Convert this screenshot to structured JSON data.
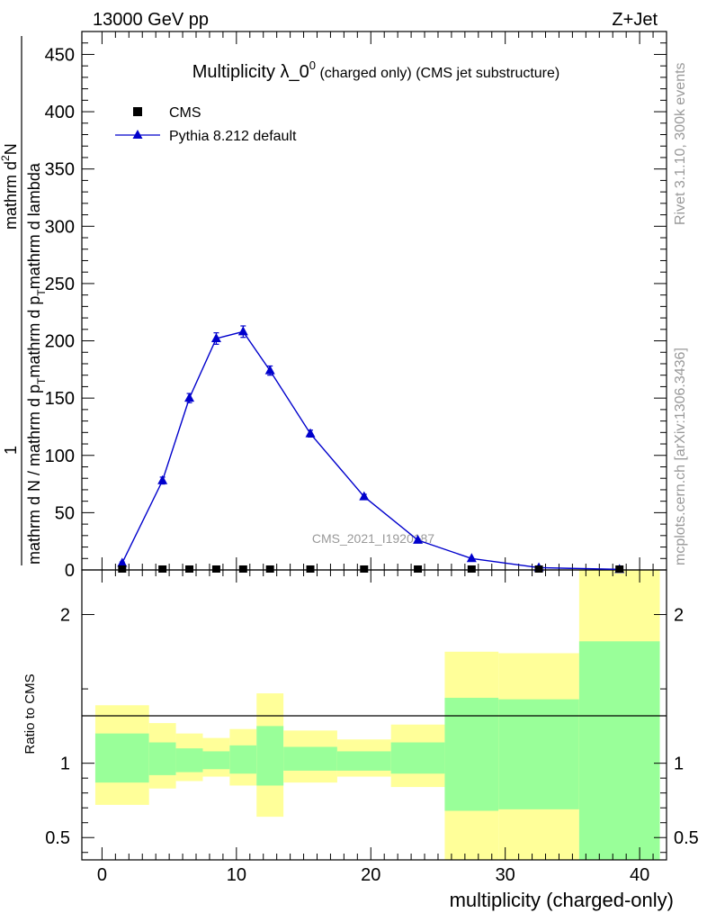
{
  "header": {
    "left": "13000 GeV pp",
    "right": "Z+Jet"
  },
  "side": {
    "rivet": "Rivet 3.1.10,  300k events",
    "mcplots": "mcplots.cern.ch [arXiv:1306.3436]"
  },
  "chart_data": {
    "type": "line",
    "title_main": "Multiplicity λ_0",
    "title_sup": "0",
    "title_tail": " (charged only) (CMS jet substructure)",
    "watermark": "CMS_2021_I1920187",
    "ylabel_top": {
      "numerator": "1",
      "denom_line1": "mathrm d N / mathrm d p",
      "denom_sub1": "T",
      "denom_line2": "mathrm d p",
      "denom_sub2": "T",
      "denom_rest": "mathrm d lambda",
      "dN": "mathrm d",
      "dN_sup": "2",
      "dN_tail": "N"
    },
    "ylabel_ratio": "Ratio to CMS",
    "xlabel": "multiplicity (charged-only)",
    "xlim": [
      -1.5,
      42
    ],
    "ylim_main": [
      0,
      470
    ],
    "ylim_ratio": [
      0.35,
      2.3
    ],
    "x_ticks": [
      "0",
      "10",
      "20",
      "30",
      "40"
    ],
    "y_ticks_main": [
      "0",
      "50",
      "100",
      "150",
      "200",
      "250",
      "300",
      "350",
      "400",
      "450"
    ],
    "y_ticks_ratio": [
      "0.5",
      "1",
      "2"
    ],
    "legend": [
      {
        "label": "CMS",
        "marker": "square",
        "color": "#000000"
      },
      {
        "label": "Pythia 8.212 default",
        "marker": "triangle",
        "color": "#0000cc"
      }
    ],
    "series": [
      {
        "name": "CMS",
        "x": [
          1.5,
          4.5,
          6.5,
          8.5,
          10.5,
          12.5,
          15.5,
          19.5,
          23.5,
          27.5,
          32.5,
          38.5
        ],
        "values": [
          0.8,
          0.8,
          0.8,
          0.8,
          0.8,
          0.8,
          0.8,
          0.8,
          0.8,
          0.8,
          0.8,
          0.8
        ]
      },
      {
        "name": "Pythia 8.212 default",
        "x": [
          1.5,
          4.5,
          6.5,
          8.5,
          10.5,
          12.5,
          15.5,
          19.5,
          23.5,
          27.5,
          32.5,
          38.5
        ],
        "values": [
          6,
          78,
          150,
          202,
          208,
          174,
          119,
          64,
          26,
          10,
          2,
          0.5
        ],
        "errors": [
          1,
          3,
          4,
          5,
          5,
          4,
          3,
          2,
          1,
          0.5,
          0.2,
          0.1
        ]
      }
    ],
    "ratio_bands": [
      {
        "x0": -0.5,
        "x1": 3.5,
        "y_lo": 0.72,
        "y_hi": 1.39,
        "g_lo": 0.87,
        "g_hi": 1.2
      },
      {
        "x0": 3.5,
        "x1": 5.5,
        "y_lo": 0.83,
        "y_hi": 1.27,
        "g_lo": 0.92,
        "g_hi": 1.14
      },
      {
        "x0": 5.5,
        "x1": 7.5,
        "y_lo": 0.88,
        "y_hi": 1.2,
        "g_lo": 0.94,
        "g_hi": 1.1
      },
      {
        "x0": 7.5,
        "x1": 9.5,
        "y_lo": 0.91,
        "y_hi": 1.17,
        "g_lo": 0.96,
        "g_hi": 1.08
      },
      {
        "x0": 9.5,
        "x1": 11.5,
        "y_lo": 0.85,
        "y_hi": 1.23,
        "g_lo": 0.93,
        "g_hi": 1.12
      },
      {
        "x0": 11.5,
        "x1": 13.5,
        "y_lo": 0.64,
        "y_hi": 1.47,
        "g_lo": 0.85,
        "g_hi": 1.25
      },
      {
        "x0": 13.5,
        "x1": 17.5,
        "y_lo": 0.87,
        "y_hi": 1.22,
        "g_lo": 0.95,
        "g_hi": 1.11
      },
      {
        "x0": 17.5,
        "x1": 21.5,
        "y_lo": 0.91,
        "y_hi": 1.16,
        "g_lo": 0.95,
        "g_hi": 1.08
      },
      {
        "x0": 21.5,
        "x1": 25.5,
        "y_lo": 0.84,
        "y_hi": 1.26,
        "g_lo": 0.93,
        "g_hi": 1.14
      },
      {
        "x0": 25.5,
        "x1": 29.5,
        "y_lo": 0.35,
        "y_hi": 1.75,
        "g_lo": 0.68,
        "g_hi": 1.44
      },
      {
        "x0": 29.5,
        "x1": 35.5,
        "y_lo": 0.35,
        "y_hi": 1.74,
        "g_lo": 0.69,
        "g_hi": 1.43
      },
      {
        "x0": 35.5,
        "x1": 41.5,
        "y_lo": 0.35,
        "y_hi": 2.3,
        "g_lo": 0.35,
        "g_hi": 1.82
      }
    ],
    "band_colors": {
      "yellow": "#ffff99",
      "green": "#99ff99",
      "line_blue": "#0000cc",
      "axis": "#000000",
      "side_text": "#999999"
    }
  }
}
